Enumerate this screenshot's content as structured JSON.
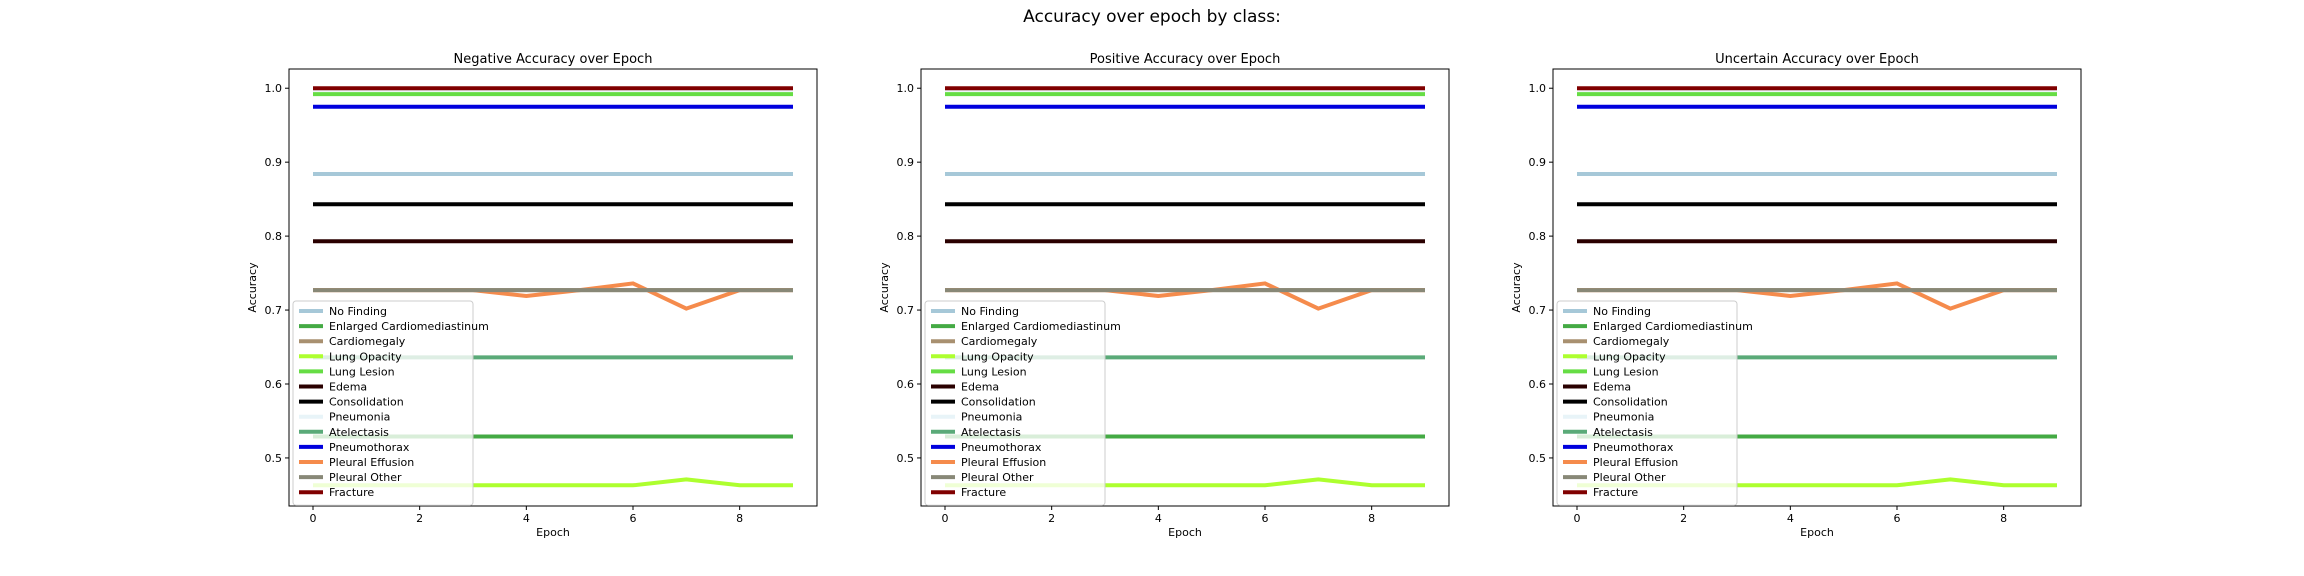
{
  "figure": {
    "title": "Accuracy over epoch by class:"
  },
  "chart_data": [
    {
      "type": "line",
      "title": "Negative Accuracy over Epoch",
      "xlabel": "Epoch",
      "ylabel": "Accuracy",
      "xlim": [
        -0.45,
        9.45
      ],
      "ylim": [
        0.435,
        1.026
      ],
      "xticks": [
        0,
        2,
        4,
        6,
        8
      ],
      "xtick_labels": [
        "0",
        "2",
        "4",
        "6",
        "8"
      ],
      "yticks": [
        0.5,
        0.6,
        0.7,
        0.8,
        0.9,
        1.0
      ],
      "ytick_labels": [
        "0.5",
        "0.6",
        "0.7",
        "0.8",
        "0.9",
        "1.0"
      ],
      "grid": false,
      "legend_position": "lower-left",
      "x": [
        0,
        1,
        2,
        3,
        4,
        5,
        6,
        7,
        8,
        9
      ],
      "series": [
        {
          "name": "No Finding",
          "color": "#a6c8d8",
          "values": [
            0.884,
            0.884,
            0.884,
            0.884,
            0.884,
            0.884,
            0.884,
            0.884,
            0.884,
            0.884
          ]
        },
        {
          "name": "Enlarged Cardiomediastinum",
          "color": "#44aa44",
          "values": [
            0.529,
            0.529,
            0.529,
            0.529,
            0.529,
            0.529,
            0.529,
            0.529,
            0.529,
            0.529
          ]
        },
        {
          "name": "Cardiomegaly",
          "color": "#a89070",
          "values": [
            0.727,
            0.727,
            0.727,
            0.727,
            0.727,
            0.727,
            0.727,
            0.727,
            0.727,
            0.727
          ]
        },
        {
          "name": "Lung Opacity",
          "color": "#adff2f",
          "values": [
            0.463,
            0.463,
            0.463,
            0.463,
            0.463,
            0.463,
            0.463,
            0.471,
            0.463,
            0.463
          ]
        },
        {
          "name": "Lung Lesion",
          "color": "#66dd44",
          "values": [
            0.992,
            0.992,
            0.992,
            0.992,
            0.992,
            0.992,
            0.992,
            0.992,
            0.992,
            0.992
          ]
        },
        {
          "name": "Edema",
          "color": "#2a0000",
          "values": [
            0.793,
            0.793,
            0.793,
            0.793,
            0.793,
            0.793,
            0.793,
            0.793,
            0.793,
            0.793
          ]
        },
        {
          "name": "Consolidation",
          "color": "#000000",
          "values": [
            0.843,
            0.843,
            0.843,
            0.843,
            0.843,
            0.843,
            0.843,
            0.843,
            0.843,
            0.843
          ]
        },
        {
          "name": "Pneumonia",
          "color": "#e8f4f8",
          "values": [
            0.998,
            0.998,
            0.998,
            0.998,
            0.998,
            0.998,
            0.998,
            0.998,
            0.998,
            0.998
          ]
        },
        {
          "name": "Atelectasis",
          "color": "#5aaa78",
          "values": [
            0.636,
            0.636,
            0.636,
            0.636,
            0.636,
            0.636,
            0.636,
            0.636,
            0.636,
            0.636
          ]
        },
        {
          "name": "Pneumothorax",
          "color": "#0000dd",
          "values": [
            0.975,
            0.975,
            0.975,
            0.975,
            0.975,
            0.975,
            0.975,
            0.975,
            0.975,
            0.975
          ]
        },
        {
          "name": "Pleural Effusion",
          "color": "#f58b4c",
          "values": [
            0.727,
            0.727,
            0.727,
            0.727,
            0.719,
            0.727,
            0.736,
            0.702,
            0.727,
            0.727
          ]
        },
        {
          "name": "Pleural Other",
          "color": "#888877",
          "values": [
            0.727,
            0.727,
            0.727,
            0.727,
            0.727,
            0.727,
            0.727,
            0.727,
            0.727,
            0.727
          ]
        },
        {
          "name": "Fracture",
          "color": "#800000",
          "values": [
            1.0,
            1.0,
            1.0,
            1.0,
            1.0,
            1.0,
            1.0,
            1.0,
            1.0,
            1.0
          ]
        }
      ]
    },
    {
      "type": "line",
      "title": "Positive Accuracy over Epoch",
      "xlabel": "Epoch",
      "ylabel": "Accuracy",
      "xlim": [
        -0.45,
        9.45
      ],
      "ylim": [
        0.435,
        1.026
      ],
      "xticks": [
        0,
        2,
        4,
        6,
        8
      ],
      "xtick_labels": [
        "0",
        "2",
        "4",
        "6",
        "8"
      ],
      "yticks": [
        0.5,
        0.6,
        0.7,
        0.8,
        0.9,
        1.0
      ],
      "ytick_labels": [
        "0.5",
        "0.6",
        "0.7",
        "0.8",
        "0.9",
        "1.0"
      ],
      "grid": false,
      "legend_position": "lower-left",
      "x": [
        0,
        1,
        2,
        3,
        4,
        5,
        6,
        7,
        8,
        9
      ],
      "series": [
        {
          "name": "No Finding",
          "color": "#a6c8d8",
          "values": [
            0.884,
            0.884,
            0.884,
            0.884,
            0.884,
            0.884,
            0.884,
            0.884,
            0.884,
            0.884
          ]
        },
        {
          "name": "Enlarged Cardiomediastinum",
          "color": "#44aa44",
          "values": [
            0.529,
            0.529,
            0.529,
            0.529,
            0.529,
            0.529,
            0.529,
            0.529,
            0.529,
            0.529
          ]
        },
        {
          "name": "Cardiomegaly",
          "color": "#a89070",
          "values": [
            0.727,
            0.727,
            0.727,
            0.727,
            0.727,
            0.727,
            0.727,
            0.727,
            0.727,
            0.727
          ]
        },
        {
          "name": "Lung Opacity",
          "color": "#adff2f",
          "values": [
            0.463,
            0.463,
            0.463,
            0.463,
            0.463,
            0.463,
            0.463,
            0.471,
            0.463,
            0.463
          ]
        },
        {
          "name": "Lung Lesion",
          "color": "#66dd44",
          "values": [
            0.992,
            0.992,
            0.992,
            0.992,
            0.992,
            0.992,
            0.992,
            0.992,
            0.992,
            0.992
          ]
        },
        {
          "name": "Edema",
          "color": "#2a0000",
          "values": [
            0.793,
            0.793,
            0.793,
            0.793,
            0.793,
            0.793,
            0.793,
            0.793,
            0.793,
            0.793
          ]
        },
        {
          "name": "Consolidation",
          "color": "#000000",
          "values": [
            0.843,
            0.843,
            0.843,
            0.843,
            0.843,
            0.843,
            0.843,
            0.843,
            0.843,
            0.843
          ]
        },
        {
          "name": "Pneumonia",
          "color": "#e8f4f8",
          "values": [
            0.998,
            0.998,
            0.998,
            0.998,
            0.998,
            0.998,
            0.998,
            0.998,
            0.998,
            0.998
          ]
        },
        {
          "name": "Atelectasis",
          "color": "#5aaa78",
          "values": [
            0.636,
            0.636,
            0.636,
            0.636,
            0.636,
            0.636,
            0.636,
            0.636,
            0.636,
            0.636
          ]
        },
        {
          "name": "Pneumothorax",
          "color": "#0000dd",
          "values": [
            0.975,
            0.975,
            0.975,
            0.975,
            0.975,
            0.975,
            0.975,
            0.975,
            0.975,
            0.975
          ]
        },
        {
          "name": "Pleural Effusion",
          "color": "#f58b4c",
          "values": [
            0.727,
            0.727,
            0.727,
            0.727,
            0.719,
            0.727,
            0.736,
            0.702,
            0.727,
            0.727
          ]
        },
        {
          "name": "Pleural Other",
          "color": "#888877",
          "values": [
            0.727,
            0.727,
            0.727,
            0.727,
            0.727,
            0.727,
            0.727,
            0.727,
            0.727,
            0.727
          ]
        },
        {
          "name": "Fracture",
          "color": "#800000",
          "values": [
            1.0,
            1.0,
            1.0,
            1.0,
            1.0,
            1.0,
            1.0,
            1.0,
            1.0,
            1.0
          ]
        }
      ]
    },
    {
      "type": "line",
      "title": "Uncertain Accuracy over Epoch",
      "xlabel": "Epoch",
      "ylabel": "Accuracy",
      "xlim": [
        -0.45,
        9.45
      ],
      "ylim": [
        0.435,
        1.026
      ],
      "xticks": [
        0,
        2,
        4,
        6,
        8
      ],
      "xtick_labels": [
        "0",
        "2",
        "4",
        "6",
        "8"
      ],
      "yticks": [
        0.5,
        0.6,
        0.7,
        0.8,
        0.9,
        1.0
      ],
      "ytick_labels": [
        "0.5",
        "0.6",
        "0.7",
        "0.8",
        "0.9",
        "1.0"
      ],
      "grid": false,
      "legend_position": "lower-left",
      "x": [
        0,
        1,
        2,
        3,
        4,
        5,
        6,
        7,
        8,
        9
      ],
      "series": [
        {
          "name": "No Finding",
          "color": "#a6c8d8",
          "values": [
            0.884,
            0.884,
            0.884,
            0.884,
            0.884,
            0.884,
            0.884,
            0.884,
            0.884,
            0.884
          ]
        },
        {
          "name": "Enlarged Cardiomediastinum",
          "color": "#44aa44",
          "values": [
            0.529,
            0.529,
            0.529,
            0.529,
            0.529,
            0.529,
            0.529,
            0.529,
            0.529,
            0.529
          ]
        },
        {
          "name": "Cardiomegaly",
          "color": "#a89070",
          "values": [
            0.727,
            0.727,
            0.727,
            0.727,
            0.727,
            0.727,
            0.727,
            0.727,
            0.727,
            0.727
          ]
        },
        {
          "name": "Lung Opacity",
          "color": "#adff2f",
          "values": [
            0.463,
            0.463,
            0.463,
            0.463,
            0.463,
            0.463,
            0.463,
            0.471,
            0.463,
            0.463
          ]
        },
        {
          "name": "Lung Lesion",
          "color": "#66dd44",
          "values": [
            0.992,
            0.992,
            0.992,
            0.992,
            0.992,
            0.992,
            0.992,
            0.992,
            0.992,
            0.992
          ]
        },
        {
          "name": "Edema",
          "color": "#2a0000",
          "values": [
            0.793,
            0.793,
            0.793,
            0.793,
            0.793,
            0.793,
            0.793,
            0.793,
            0.793,
            0.793
          ]
        },
        {
          "name": "Consolidation",
          "color": "#000000",
          "values": [
            0.843,
            0.843,
            0.843,
            0.843,
            0.843,
            0.843,
            0.843,
            0.843,
            0.843,
            0.843
          ]
        },
        {
          "name": "Pneumonia",
          "color": "#e8f4f8",
          "values": [
            0.998,
            0.998,
            0.998,
            0.998,
            0.998,
            0.998,
            0.998,
            0.998,
            0.998,
            0.998
          ]
        },
        {
          "name": "Atelectasis",
          "color": "#5aaa78",
          "values": [
            0.636,
            0.636,
            0.636,
            0.636,
            0.636,
            0.636,
            0.636,
            0.636,
            0.636,
            0.636
          ]
        },
        {
          "name": "Pneumothorax",
          "color": "#0000dd",
          "values": [
            0.975,
            0.975,
            0.975,
            0.975,
            0.975,
            0.975,
            0.975,
            0.975,
            0.975,
            0.975
          ]
        },
        {
          "name": "Pleural Effusion",
          "color": "#f58b4c",
          "values": [
            0.727,
            0.727,
            0.727,
            0.727,
            0.719,
            0.727,
            0.736,
            0.702,
            0.727,
            0.727
          ]
        },
        {
          "name": "Pleural Other",
          "color": "#888877",
          "values": [
            0.727,
            0.727,
            0.727,
            0.727,
            0.727,
            0.727,
            0.727,
            0.727,
            0.727,
            0.727
          ]
        },
        {
          "name": "Fracture",
          "color": "#800000",
          "values": [
            1.0,
            1.0,
            1.0,
            1.0,
            1.0,
            1.0,
            1.0,
            1.0,
            1.0,
            1.0
          ]
        }
      ]
    }
  ]
}
